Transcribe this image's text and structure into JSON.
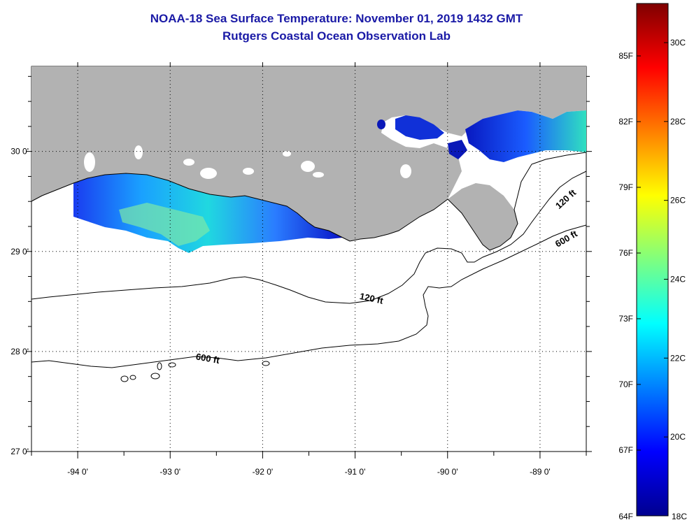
{
  "title": "NOAA-18 Sea Surface Temperature:  November 01, 2019 1432 GMT",
  "subtitle": "Rutgers Coastal Ocean Observation Lab",
  "map": {
    "lon_range": [
      -94.5,
      -88.5
    ],
    "lat_range": [
      27.0,
      30.85
    ],
    "lon_ticks": [
      {
        "value": -94,
        "label": "-94 0'"
      },
      {
        "value": -93,
        "label": "-93 0'"
      },
      {
        "value": -92,
        "label": "-92 0'"
      },
      {
        "value": -91,
        "label": "-91 0'"
      },
      {
        "value": -90,
        "label": "-90 0'"
      },
      {
        "value": -89,
        "label": "-89 0'"
      }
    ],
    "lat_ticks": [
      {
        "value": 30,
        "label": "30 0'"
      },
      {
        "value": 29,
        "label": "29 0'"
      },
      {
        "value": 28,
        "label": "28 0'"
      },
      {
        "value": 27,
        "label": "27 0'"
      }
    ],
    "grid": "dotted",
    "land_color": "#b2b2b2",
    "isobath_labels": [
      {
        "text": "120 ft",
        "lon": -90.83,
        "lat": 28.5
      },
      {
        "text": "600 ft",
        "lon": -92.6,
        "lat": 27.9
      },
      {
        "text": "120 ft",
        "lon": -88.7,
        "lat": 29.5
      },
      {
        "text": "600 ft",
        "lon": -88.7,
        "lat": 29.1
      }
    ]
  },
  "colorbar": {
    "fahrenheit_labels": [
      "85F",
      "82F",
      "79F",
      "76F",
      "73F",
      "70F",
      "67F",
      "64F"
    ],
    "celsius_labels": [
      "30C",
      "28C",
      "26C",
      "24C",
      "22C",
      "20C",
      "18C"
    ],
    "colors": [
      "#00008f",
      "#0000ff",
      "#007fff",
      "#00ffff",
      "#7fff7f",
      "#ffff00",
      "#ff7f00",
      "#ff0000",
      "#7f0000"
    ]
  }
}
